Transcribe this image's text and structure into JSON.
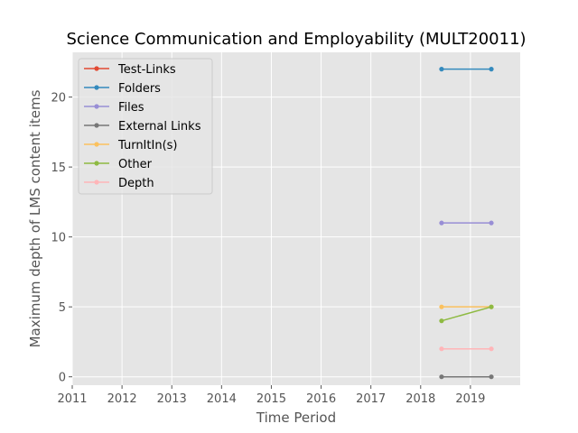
{
  "chart_data": {
    "type": "line",
    "title": "Science Communication and Employability (MULT20011)",
    "xlabel": "Time Period",
    "ylabel": "Maximum depth of LMS content items",
    "xlim": [
      2011,
      2020
    ],
    "ylim": [
      -0.6,
      23.2
    ],
    "x_ticks": [
      2011,
      2012,
      2013,
      2014,
      2015,
      2016,
      2017,
      2018,
      2019
    ],
    "y_ticks": [
      0,
      5,
      10,
      15,
      20
    ],
    "grid": true,
    "legend_position": "top-left",
    "x": [
      2018.42,
      2019.42
    ],
    "series": [
      {
        "name": "Test-Links",
        "color": "#E24A33",
        "values": [
          null,
          null
        ]
      },
      {
        "name": "Folders",
        "color": "#348ABD",
        "values": [
          22,
          22
        ]
      },
      {
        "name": "Files",
        "color": "#988ED5",
        "values": [
          11,
          11
        ]
      },
      {
        "name": "External Links",
        "color": "#777777",
        "values": [
          0,
          0
        ]
      },
      {
        "name": "TurnItIn(s)",
        "color": "#FBC15E",
        "values": [
          5,
          5
        ]
      },
      {
        "name": "Other",
        "color": "#8EBA42",
        "values": [
          4,
          5
        ]
      },
      {
        "name": "Depth",
        "color": "#FFB5B8",
        "values": [
          2,
          2
        ]
      }
    ]
  }
}
